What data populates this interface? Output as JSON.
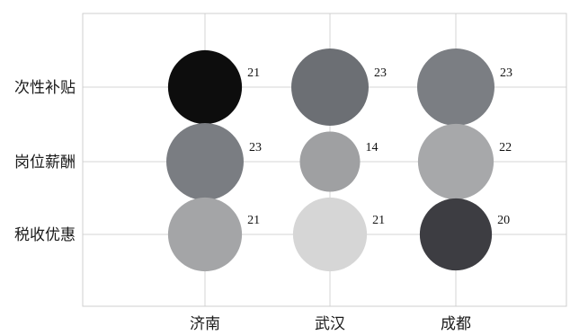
{
  "chart_data": {
    "type": "bubble",
    "x_categories": [
      "济南",
      "武汉",
      "成都"
    ],
    "y_categories": [
      "次性补贴",
      "岗位薪酬",
      "税收优惠"
    ],
    "grid": true,
    "legend": "none",
    "points": [
      {
        "x": "济南",
        "y": "次性补贴",
        "value": 21,
        "color": "#0d0d0d"
      },
      {
        "x": "武汉",
        "y": "次性补贴",
        "value": 23,
        "color": "#6c6f74"
      },
      {
        "x": "成都",
        "y": "次性补贴",
        "value": 23,
        "color": "#7b7e83"
      },
      {
        "x": "济南",
        "y": "岗位薪酬",
        "value": 23,
        "color": "#7a7d82"
      },
      {
        "x": "武汉",
        "y": "岗位薪酬",
        "value": 14,
        "color": "#9fa0a2"
      },
      {
        "x": "成都",
        "y": "岗位薪酬",
        "value": 22,
        "color": "#a7a8aa"
      },
      {
        "x": "济南",
        "y": "税收优惠",
        "value": 21,
        "color": "#a4a5a7"
      },
      {
        "x": "武汉",
        "y": "税收优惠",
        "value": 21,
        "color": "#d6d6d6"
      },
      {
        "x": "成都",
        "y": "税收优惠",
        "value": 20,
        "color": "#3d3d42"
      }
    ]
  }
}
